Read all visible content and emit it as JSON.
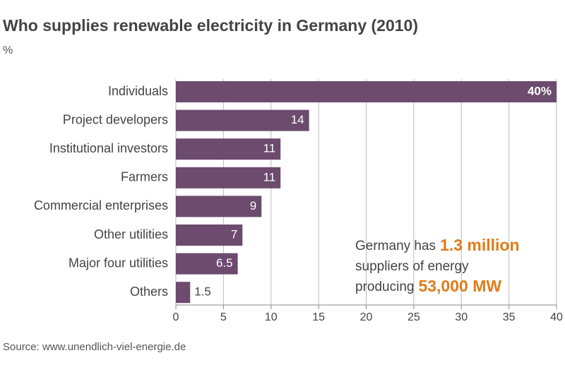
{
  "chart_data": {
    "type": "bar",
    "orientation": "horizontal",
    "title": "Who supplies renewable electricity in Germany (2010)",
    "unit": "%",
    "source": "Source: www.unendlich-viel-energie.de",
    "categories": [
      "Individuals",
      "Project developers",
      "Institutional investors",
      "Farmers",
      "Commercial enterprises",
      "Other utilities",
      "Major four utilities",
      "Others"
    ],
    "values": [
      40,
      14,
      11,
      11,
      9,
      7,
      6.5,
      1.5
    ],
    "value_labels": [
      "40%",
      "14",
      "11",
      "11",
      "9",
      "7",
      "6.5",
      "1.5"
    ],
    "color": "#6c4b6e",
    "xlim": [
      0,
      40
    ],
    "xticks": [
      0,
      5,
      10,
      15,
      20,
      25,
      30,
      35,
      40
    ],
    "grid": true,
    "annotation": {
      "lines": [
        [
          "Germany has",
          "1.3 million"
        ],
        [
          "suppliers of energy"
        ],
        [
          "producing",
          "53,000 MW"
        ]
      ]
    }
  }
}
